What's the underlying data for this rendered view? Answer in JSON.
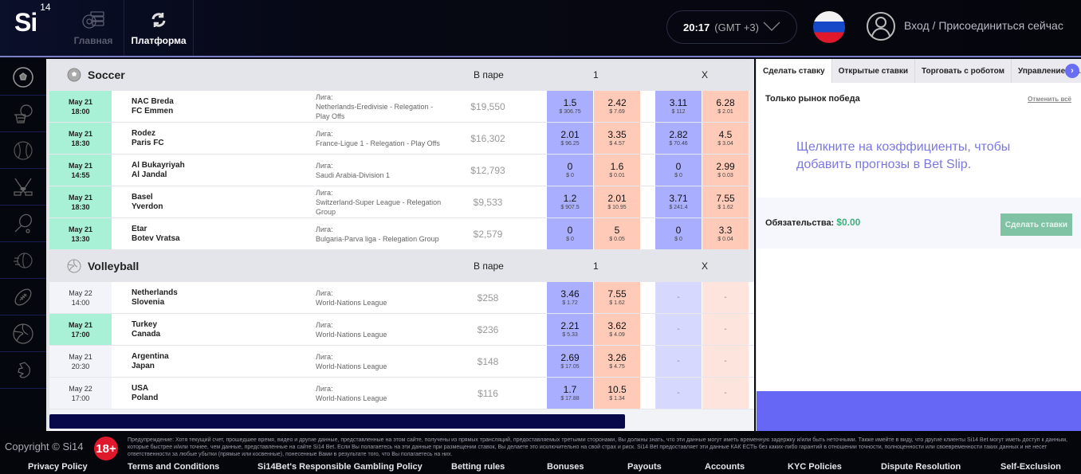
{
  "header": {
    "logo": "Si",
    "logo_sup": "14",
    "nav": [
      {
        "label": "Главная",
        "icon": "home-coins-icon"
      },
      {
        "label": "Платформа",
        "icon": "refresh-icon"
      }
    ],
    "time": "20:17",
    "timezone": "(GMT +3)",
    "language_flag": "russia-flag",
    "login_label": "Вход / Присоединиться сейчас"
  },
  "sidebar": {
    "items": [
      "soccer",
      "basketball",
      "baseball",
      "hockey",
      "tennis",
      "volleyball-speed",
      "american-football",
      "volleyball",
      "horse-racing"
    ]
  },
  "sports": [
    {
      "name": "Soccer",
      "matched_header": "В паре",
      "col1_header": "1",
      "colx_header": "X",
      "events": [
        {
          "date": "May 21",
          "time": "18:00",
          "live": true,
          "home": "NAC Breda",
          "away": "FC Emmen",
          "league_label": "Лига:",
          "league": "Netherlands-Eredivisie - Relegation - Play Offs",
          "matched": "$19,550",
          "odds": [
            {
              "p": "1.5",
              "v": "$ 306.75"
            },
            {
              "p": "2.42",
              "v": "$ 7.69"
            },
            {
              "p": "3.11",
              "v": "$ 112"
            },
            {
              "p": "6.28",
              "v": "$ 2.01"
            }
          ]
        },
        {
          "date": "May 21",
          "time": "18:30",
          "live": true,
          "home": "Rodez",
          "away": "Paris FC",
          "league_label": "Лига:",
          "league": "France-Ligue 1 - Relegation - Play Offs",
          "matched": "$16,302",
          "odds": [
            {
              "p": "2.01",
              "v": "$ 96.25"
            },
            {
              "p": "3.35",
              "v": "$ 4.57"
            },
            {
              "p": "2.82",
              "v": "$ 70.46"
            },
            {
              "p": "4.5",
              "v": "$ 3.04"
            }
          ]
        },
        {
          "date": "May 21",
          "time": "14:55",
          "live": true,
          "home": "Al Bukayriyah",
          "away": "Al Jandal",
          "league_label": "Лига:",
          "league": "Saudi Arabia-Division 1",
          "matched": "$12,793",
          "odds": [
            {
              "p": "0",
              "v": "$ 0"
            },
            {
              "p": "1.6",
              "v": "$ 0.01"
            },
            {
              "p": "0",
              "v": "$ 0"
            },
            {
              "p": "2.99",
              "v": "$ 0.03"
            }
          ]
        },
        {
          "date": "May 21",
          "time": "18:30",
          "live": true,
          "home": "Basel",
          "away": "Yverdon",
          "league_label": "Лига:",
          "league": "Switzerland-Super League - Relegation Group",
          "matched": "$9,533",
          "odds": [
            {
              "p": "1.2",
              "v": "$ 907.5"
            },
            {
              "p": "2.01",
              "v": "$ 10.95"
            },
            {
              "p": "3.71",
              "v": "$ 241.4"
            },
            {
              "p": "7.55",
              "v": "$ 1.62"
            }
          ]
        },
        {
          "date": "May 21",
          "time": "13:30",
          "live": true,
          "home": "Etar",
          "away": "Botev Vratsa",
          "league_label": "Лига:",
          "league": "Bulgaria-Parva liga - Relegation Group",
          "matched": "$2,579",
          "odds": [
            {
              "p": "0",
              "v": "$ 0"
            },
            {
              "p": "5",
              "v": "$ 0.05"
            },
            {
              "p": "0",
              "v": "$ 0"
            },
            {
              "p": "3.3",
              "v": "$ 0.04"
            }
          ]
        }
      ]
    },
    {
      "name": "Volleyball",
      "matched_header": "В паре",
      "col1_header": "1",
      "colx_header": "X",
      "events": [
        {
          "date": "May 22",
          "time": "14:00",
          "live": false,
          "home": "Netherlands",
          "away": "Slovenia",
          "league_label": "Лига:",
          "league": "World-Nations League",
          "matched": "$258",
          "odds": [
            {
              "p": "3.46",
              "v": "$ 1.72"
            },
            {
              "p": "7.55",
              "v": "$ 1.62"
            },
            {
              "p": "-",
              "v": ""
            },
            {
              "p": "-",
              "v": ""
            }
          ]
        },
        {
          "date": "May 21",
          "time": "17:00",
          "live": true,
          "home": "Turkey",
          "away": "Canada",
          "league_label": "Лига:",
          "league": "World-Nations League",
          "matched": "$236",
          "odds": [
            {
              "p": "2.21",
              "v": "$ 5.33"
            },
            {
              "p": "3.62",
              "v": "$ 4.09"
            },
            {
              "p": "-",
              "v": ""
            },
            {
              "p": "-",
              "v": ""
            }
          ]
        },
        {
          "date": "May 21",
          "time": "20:30",
          "live": false,
          "home": "Argentina",
          "away": "Japan",
          "league_label": "Лига:",
          "league": "World-Nations League",
          "matched": "$148",
          "odds": [
            {
              "p": "2.69",
              "v": "$ 17.05"
            },
            {
              "p": "3.26",
              "v": "$ 4.75"
            },
            {
              "p": "-",
              "v": ""
            },
            {
              "p": "-",
              "v": ""
            }
          ]
        },
        {
          "date": "May 22",
          "time": "17:00",
          "live": false,
          "home": "USA",
          "away": "Poland",
          "league_label": "Лига:",
          "league": "World-Nations League",
          "matched": "$116",
          "odds": [
            {
              "p": "1.7",
              "v": "$ 17.88"
            },
            {
              "p": "10.5",
              "v": "$ 1.34"
            },
            {
              "p": "-",
              "v": ""
            },
            {
              "p": "-",
              "v": ""
            }
          ]
        }
      ]
    }
  ],
  "betslip": {
    "tabs": [
      "Сделать ставку",
      "Открытые ставки",
      "Торговать с роботом",
      "Управление ак..."
    ],
    "title": "Только рынок победа",
    "cancel_all": "Отменить всё",
    "empty_message": "Щелкните на коэффициенты, чтобы добавить прогнозы в Bet Slip.",
    "liability_label": "Обязательства:",
    "liability_value": "$0.00",
    "place_bets": "Сделать ставки"
  },
  "footer": {
    "copyright": "Copyright © Si14",
    "age_badge": "18+",
    "warning": "Предупреждение: Хотя текущий счет, прошедшее время, видео и другие данные, представленные на этом сайте, получены из прямых трансляций, предоставляемых третьими сторонами, Вы должны знать, что эти данные могут иметь временную задержку и/или быть неточными. Также имейте в виду, что другие клиенты Si14 Bet могут иметь доступ к данным, которые быстрее и/или точнее, чем данные, представленные на сайте Si14 Bet. Если Вы полагаетесь на эти данные при размещении ставок, Вы делаете это исключительно на свой страх и риск. Si14 Bet предоставляет эти данные КАК ЕСТЬ без каких-либо гарантий в отношении точности, полноценности или своевременности таких данных и не несет ответственности за любые убытки (прямые или косвенные), понесенные Вами в результате того, что Вы полагаетесь на них.",
    "links": [
      "Privacy Policy",
      "Terms and Conditions",
      "Si14Bet's Responsible Gambling Policy",
      "Betting rules",
      "Bonuses",
      "Payouts",
      "Accounts",
      "KYC Policies",
      "Dispute Resolution",
      "Self-Exclusion"
    ]
  },
  "colors": {
    "back": "#a9affe",
    "lay": "#ffcbb8",
    "live_date": "#a8f0d6",
    "accent": "#6767f6",
    "liability_green": "#3ab07c"
  }
}
